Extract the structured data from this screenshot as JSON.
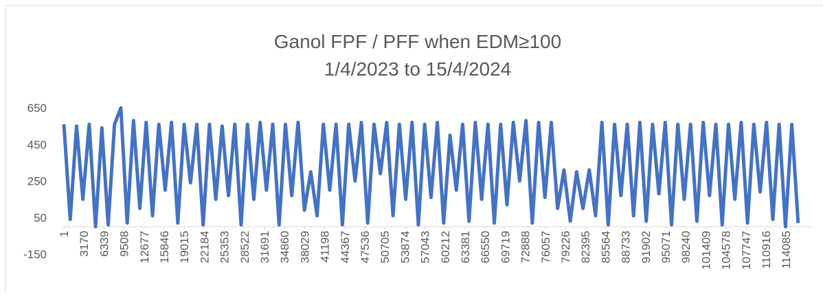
{
  "chart_data": {
    "type": "line",
    "title": "Ganol FPF / PFF when EDM≥100",
    "subtitle": "1/4/2023 to 15/4/2024",
    "x": [
      1,
      1000,
      2000,
      3000,
      4000,
      5000,
      6000,
      7000,
      8000,
      9000,
      10000,
      11000,
      12000,
      13000,
      14000,
      15000,
      16000,
      17000,
      18000,
      19000,
      20000,
      21000,
      22000,
      23000,
      24000,
      25000,
      26000,
      27000,
      28000,
      29000,
      30000,
      31000,
      32000,
      33000,
      34000,
      35000,
      36000,
      37000,
      38000,
      39000,
      40000,
      41000,
      42000,
      43000,
      44000,
      45000,
      46000,
      47000,
      48000,
      49000,
      50000,
      51000,
      52000,
      53000,
      54000,
      55000,
      56000,
      57000,
      58000,
      59000,
      60000,
      61000,
      62000,
      63000,
      64000,
      65000,
      66000,
      67000,
      68000,
      69000,
      70000,
      71000,
      72000,
      73000,
      74000,
      75000,
      76000,
      77000,
      78000,
      79000,
      80000,
      81000,
      82000,
      83000,
      84000,
      85000,
      86000,
      87000,
      88000,
      89000,
      90000,
      91000,
      92000,
      93000,
      94000,
      95000,
      96000,
      97000,
      98000,
      99000,
      100000,
      101000,
      102000,
      103000,
      104000,
      105000,
      106000,
      107000,
      108000,
      109000,
      110000,
      111000,
      112000,
      113000,
      114000,
      115000,
      116000
    ],
    "series": [
      {
        "color": "#4472c4",
        "values": [
          560,
          40,
          550,
          150,
          560,
          0,
          540,
          10,
          560,
          650,
          20,
          580,
          100,
          570,
          60,
          560,
          200,
          570,
          20,
          560,
          240,
          560,
          10,
          560,
          150,
          550,
          170,
          560,
          10,
          560,
          150,
          570,
          200,
          560,
          10,
          560,
          170,
          570,
          90,
          300,
          60,
          560,
          200,
          560,
          10,
          560,
          250,
          570,
          20,
          560,
          290,
          570,
          60,
          560,
          150,
          570,
          10,
          560,
          160,
          570,
          20,
          500,
          200,
          560,
          30,
          570,
          150,
          560,
          20,
          560,
          120,
          570,
          250,
          580,
          20,
          570,
          160,
          570,
          100,
          310,
          30,
          300,
          100,
          310,
          60,
          570,
          10,
          560,
          170,
          560,
          60,
          570,
          30,
          560,
          180,
          570,
          10,
          560,
          150,
          560,
          30,
          570,
          170,
          560,
          10,
          560,
          150,
          570,
          20,
          560,
          190,
          570,
          40,
          560,
          0,
          560,
          20
        ]
      }
    ],
    "xlim": [
      1,
      118300
    ],
    "xticks": [
      1,
      3170,
      6339,
      9508,
      12677,
      15846,
      19015,
      22184,
      25353,
      28522,
      31691,
      34860,
      38029,
      41198,
      44367,
      47536,
      50705,
      53874,
      57043,
      60212,
      63381,
      66550,
      69719,
      72888,
      76057,
      79226,
      82395,
      85564,
      88733,
      91902,
      95071,
      98240,
      101409,
      104578,
      107747,
      110916,
      114085
    ],
    "ylim": [
      -150,
      650
    ],
    "yticks": [
      -150,
      50,
      250,
      450,
      650
    ]
  }
}
